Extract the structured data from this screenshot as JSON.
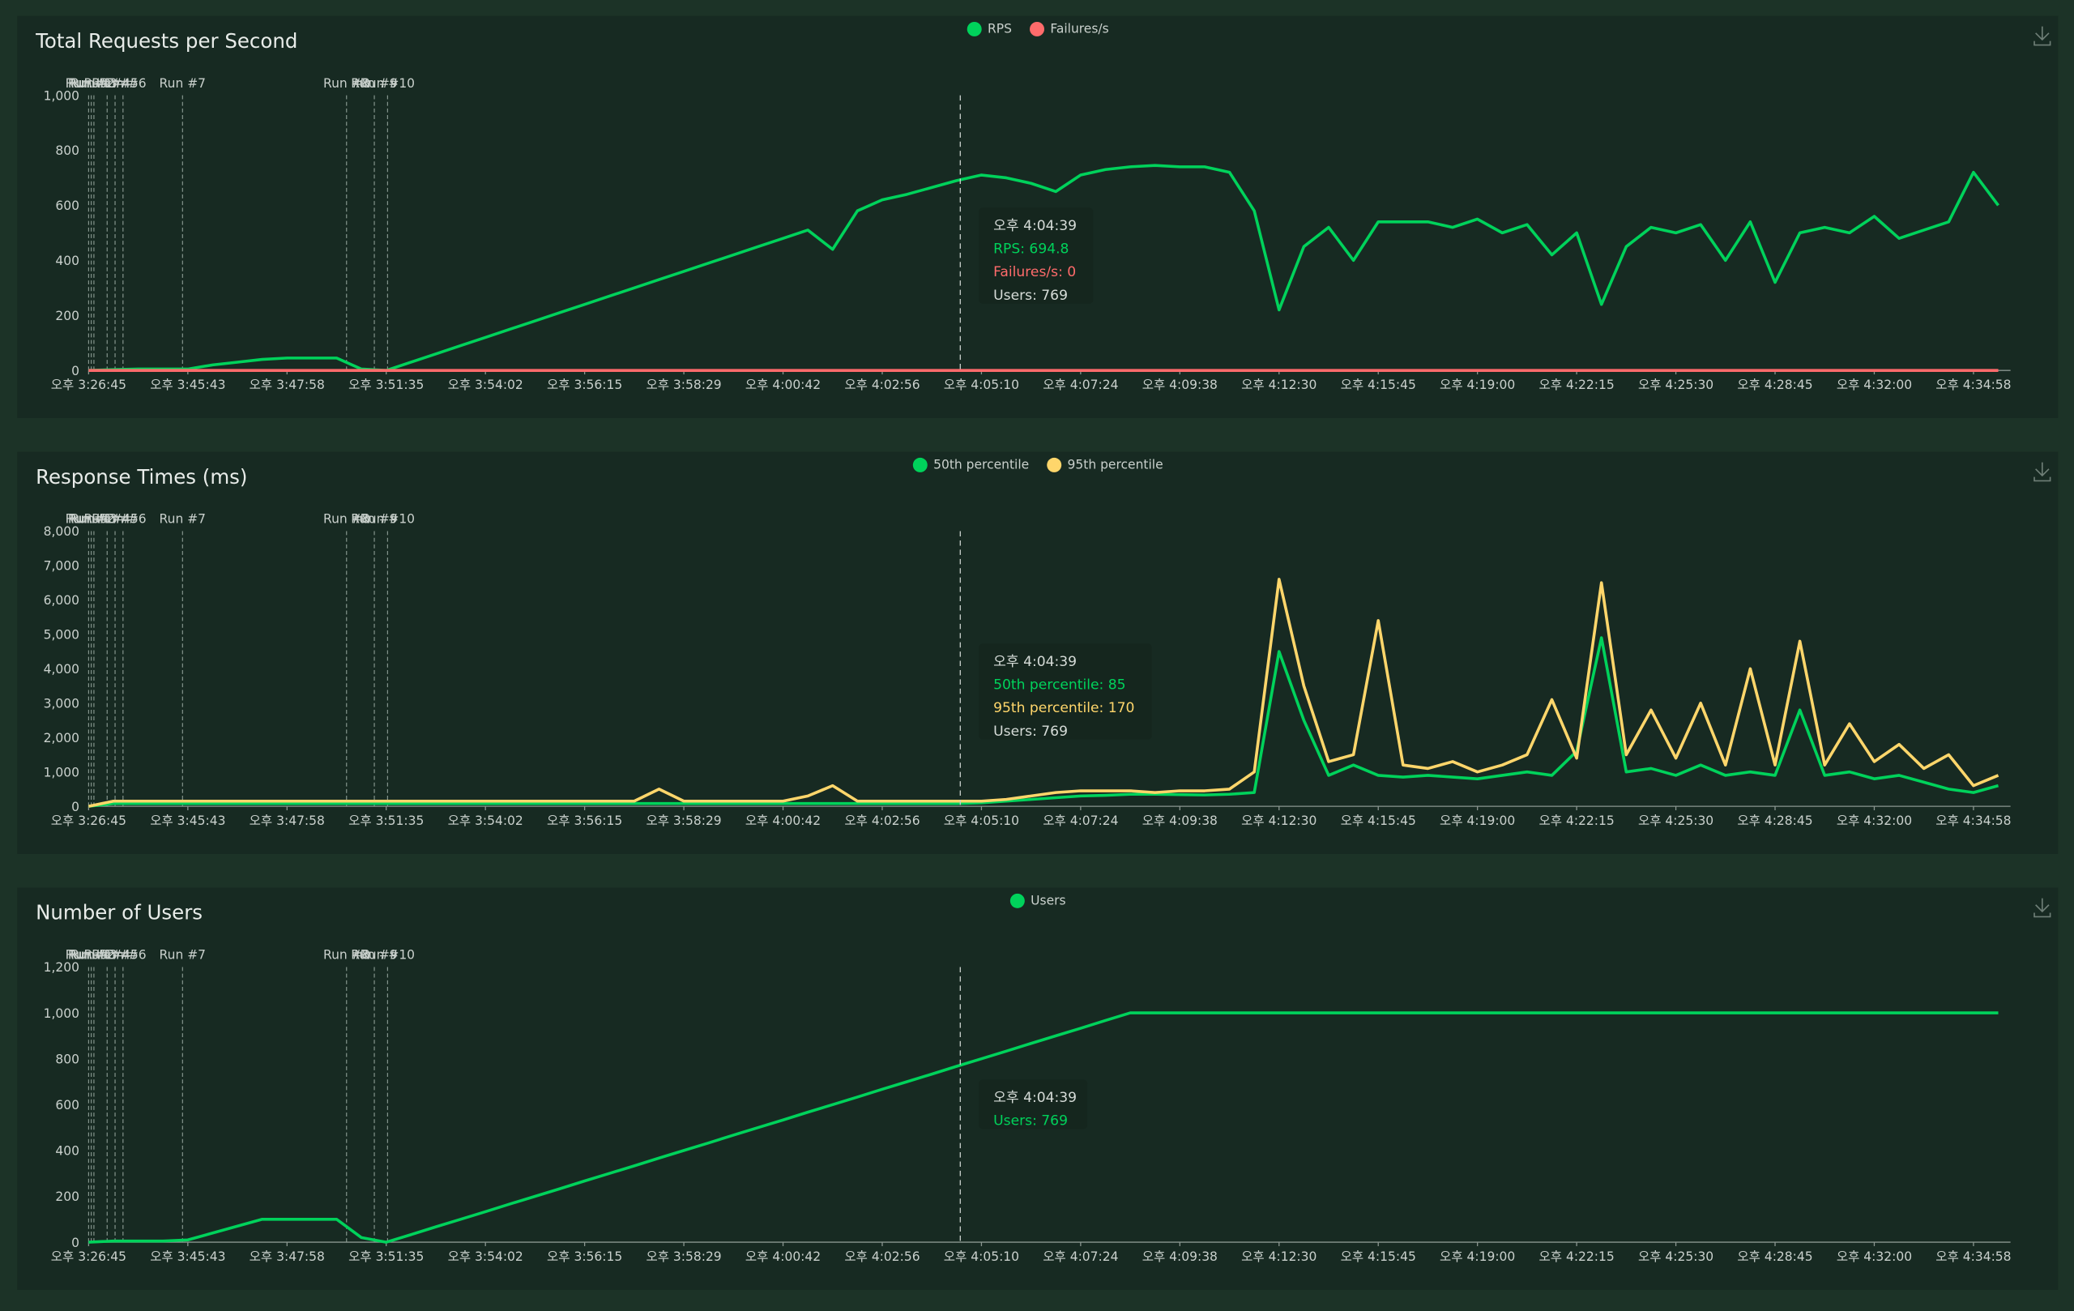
{
  "chart_data": [
    {
      "type": "line",
      "title": "Total Requests per Second",
      "categories": [
        "오후 3:26:45",
        null,
        null,
        null,
        "오후 3:45:43",
        null,
        null,
        null,
        "오후 3:47:58",
        null,
        null,
        null,
        "오후 3:51:35",
        null,
        null,
        null,
        "오후 3:54:02",
        null,
        null,
        null,
        "오후 3:56:15",
        null,
        null,
        null,
        "오후 3:58:29",
        null,
        null,
        null,
        "오후 4:00:42",
        null,
        null,
        null,
        "오후 4:02:56",
        null,
        null,
        null,
        "오후 4:05:10",
        null,
        null,
        null,
        "오후 4:07:24",
        null,
        null,
        null,
        "오후 4:09:38",
        null,
        null,
        null,
        "오후 4:12:30",
        null,
        null,
        null,
        "오후 4:15:45",
        null,
        null,
        null,
        "오후 4:19:00",
        null,
        null,
        null,
        "오후 4:22:15",
        null,
        null,
        null,
        "오후 4:25:30",
        null,
        null,
        null,
        "오후 4:28:45",
        null,
        null,
        null,
        "오후 4:32:00",
        null,
        null,
        null,
        "오후 4:34:58",
        null
      ],
      "series": [
        {
          "name": "RPS",
          "color": "#00d25b",
          "values": [
            0,
            3,
            5,
            5,
            5,
            20,
            30,
            40,
            45,
            45,
            45,
            5,
            0,
            30,
            60,
            90,
            120,
            150,
            180,
            210,
            240,
            270,
            300,
            330,
            360,
            390,
            420,
            450,
            480,
            510,
            440,
            580,
            620,
            640,
            665,
            690,
            710,
            700,
            680,
            650,
            710,
            730,
            740,
            745,
            740,
            740,
            720,
            580,
            220,
            450,
            520,
            400,
            540,
            540,
            540,
            520,
            550,
            500,
            530,
            420,
            500,
            240,
            450,
            520,
            500,
            530,
            400,
            540,
            320,
            500,
            520,
            500,
            560,
            480,
            510,
            540,
            720,
            600
          ]
        },
        {
          "name": "Failures/s",
          "color": "#ff6b6b",
          "values": [
            0,
            0,
            0,
            0,
            0,
            0,
            0,
            0,
            0,
            0,
            0,
            0,
            0,
            0,
            0,
            0,
            0,
            0,
            0,
            0,
            0,
            0,
            0,
            0,
            0,
            0,
            0,
            0,
            0,
            0,
            0,
            0,
            0,
            0,
            0,
            0,
            0,
            0,
            0,
            0,
            0,
            0,
            0,
            0,
            0,
            0,
            0,
            0,
            0,
            0,
            0,
            0,
            0,
            0,
            0,
            0,
            0,
            0,
            0,
            0,
            0,
            0,
            0,
            0,
            0,
            0,
            0,
            0,
            0,
            0,
            0,
            0,
            0,
            0,
            0,
            0,
            0,
            0
          ]
        }
      ],
      "ylim": [
        0,
        1000
      ],
      "yticks": [
        0,
        200,
        400,
        600,
        800,
        {
          "value": 1000,
          "label": "1,000"
        }
      ],
      "grid": false,
      "run_markers": [
        "Run #1",
        "Run #2",
        "Run #3",
        "Run #4",
        "Run #5",
        "Run #6",
        "Run #7",
        "Run #8",
        "Run #9",
        "Run #10"
      ],
      "tooltip": {
        "time": "오후 4:04:39",
        "items": [
          "RPS: 694.8",
          "Failures/s: 0",
          "Users: 769"
        ]
      }
    },
    {
      "type": "line",
      "title": "Response Times (ms)",
      "categories": [
        "오후 3:26:45",
        null,
        null,
        null,
        "오후 3:45:43",
        null,
        null,
        null,
        "오후 3:47:58",
        null,
        null,
        null,
        "오후 3:51:35",
        null,
        null,
        null,
        "오후 3:54:02",
        null,
        null,
        null,
        "오후 3:56:15",
        null,
        null,
        null,
        "오후 3:58:29",
        null,
        null,
        null,
        "오후 4:00:42",
        null,
        null,
        null,
        "오후 4:02:56",
        null,
        null,
        null,
        "오후 4:05:10",
        null,
        null,
        null,
        "오후 4:07:24",
        null,
        null,
        null,
        "오후 4:09:38",
        null,
        null,
        null,
        "오후 4:12:30",
        null,
        null,
        null,
        "오후 4:15:45",
        null,
        null,
        null,
        "오후 4:19:00",
        null,
        null,
        null,
        "오후 4:22:15",
        null,
        null,
        null,
        "오후 4:25:30",
        null,
        null,
        null,
        "오후 4:28:45",
        null,
        null,
        null,
        "오후 4:32:00",
        null,
        null,
        null,
        "오후 4:34:58",
        null
      ],
      "series": [
        {
          "name": "50th percentile",
          "color": "#00d25b",
          "values": [
            0,
            80,
            80,
            80,
            80,
            80,
            80,
            80,
            80,
            80,
            80,
            80,
            80,
            80,
            80,
            80,
            80,
            80,
            80,
            80,
            80,
            80,
            80,
            80,
            80,
            80,
            80,
            80,
            80,
            80,
            80,
            80,
            80,
            80,
            80,
            80,
            100,
            150,
            200,
            250,
            300,
            320,
            350,
            350,
            340,
            330,
            350,
            400,
            4500,
            2500,
            900,
            1200,
            900,
            850,
            900,
            850,
            800,
            900,
            1000,
            900,
            1600,
            4900,
            1000,
            1100,
            900,
            1200,
            900,
            1000,
            900,
            2800,
            900,
            1000,
            800,
            900,
            700,
            500,
            400,
            600
          ]
        },
        {
          "name": "95th percentile",
          "color": "#ffd66b",
          "values": [
            0,
            150,
            150,
            150,
            150,
            150,
            150,
            150,
            150,
            150,
            150,
            150,
            150,
            150,
            150,
            150,
            150,
            150,
            150,
            150,
            150,
            150,
            150,
            500,
            150,
            150,
            150,
            150,
            150,
            300,
            600,
            150,
            150,
            150,
            150,
            150,
            150,
            200,
            300,
            400,
            450,
            450,
            450,
            400,
            450,
            450,
            500,
            1000,
            6600,
            3500,
            1300,
            1500,
            5400,
            1200,
            1100,
            1300,
            1000,
            1200,
            1500,
            3100,
            1400,
            6500,
            1500,
            2800,
            1400,
            3000,
            1200,
            4000,
            1200,
            4800,
            1200,
            2400,
            1300,
            1800,
            1100,
            1500,
            600,
            900
          ]
        }
      ],
      "ylim": [
        0,
        8000
      ],
      "yticks": [
        0,
        {
          "value": 1000,
          "label": "1,000"
        },
        {
          "value": 2000,
          "label": "2,000"
        },
        {
          "value": 3000,
          "label": "3,000"
        },
        {
          "value": 4000,
          "label": "4,000"
        },
        {
          "value": 5000,
          "label": "5,000"
        },
        {
          "value": 6000,
          "label": "6,000"
        },
        {
          "value": 7000,
          "label": "7,000"
        },
        {
          "value": 8000,
          "label": "8,000"
        }
      ],
      "grid": false,
      "run_markers": [
        "Run #1",
        "Run #2",
        "Run #3",
        "Run #4",
        "Run #5",
        "Run #6",
        "Run #7",
        "Run #8",
        "Run #9",
        "Run #10"
      ],
      "tooltip": {
        "time": "오후 4:04:39",
        "items": [
          "50th percentile: 85",
          "95th percentile: 170",
          "Users: 769"
        ]
      }
    },
    {
      "type": "line",
      "title": "Number of Users",
      "categories": [
        "오후 3:26:45",
        null,
        null,
        null,
        "오후 3:45:43",
        null,
        null,
        null,
        "오후 3:47:58",
        null,
        null,
        null,
        "오후 3:51:35",
        null,
        null,
        null,
        "오후 3:54:02",
        null,
        null,
        null,
        "오후 3:56:15",
        null,
        null,
        null,
        "오후 3:58:29",
        null,
        null,
        null,
        "오후 4:00:42",
        null,
        null,
        null,
        "오후 4:02:56",
        null,
        null,
        null,
        "오후 4:05:10",
        null,
        null,
        null,
        "오후 4:07:24",
        null,
        null,
        null,
        "오후 4:09:38",
        null,
        null,
        null,
        "오후 4:12:30",
        null,
        null,
        null,
        "오후 4:15:45",
        null,
        null,
        null,
        "오후 4:19:00",
        null,
        null,
        null,
        "오후 4:22:15",
        null,
        null,
        null,
        "오후 4:25:30",
        null,
        null,
        null,
        "오후 4:28:45",
        null,
        null,
        null,
        "오후 4:32:00",
        null,
        null,
        null,
        "오후 4:34:58",
        null
      ],
      "series": [
        {
          "name": "Users",
          "color": "#00d25b",
          "values": [
            0,
            5,
            5,
            5,
            10,
            40,
            70,
            100,
            100,
            100,
            100,
            20,
            0,
            33,
            67,
            100,
            133,
            167,
            200,
            233,
            267,
            300,
            333,
            367,
            400,
            433,
            467,
            500,
            533,
            567,
            600,
            633,
            667,
            700,
            733,
            767,
            800,
            833,
            867,
            900,
            933,
            967,
            1000,
            1000,
            1000,
            1000,
            1000,
            1000,
            1000,
            1000,
            1000,
            1000,
            1000,
            1000,
            1000,
            1000,
            1000,
            1000,
            1000,
            1000,
            1000,
            1000,
            1000,
            1000,
            1000,
            1000,
            1000,
            1000,
            1000,
            1000,
            1000,
            1000,
            1000,
            1000,
            1000,
            1000,
            1000,
            1000
          ]
        }
      ],
      "ylim": [
        0,
        1200
      ],
      "yticks": [
        0,
        200,
        400,
        600,
        800,
        {
          "value": 1000,
          "label": "1,000"
        },
        {
          "value": 1200,
          "label": "1,200"
        }
      ],
      "grid": false,
      "run_markers": [
        "Run #1",
        "Run #2",
        "Run #3",
        "Run #4",
        "Run #5",
        "Run #6",
        "Run #7",
        "Run #8",
        "Run #9",
        "Run #10"
      ],
      "tooltip": {
        "time": "오후 4:04:39",
        "items": [
          "Users: 769"
        ]
      }
    }
  ]
}
